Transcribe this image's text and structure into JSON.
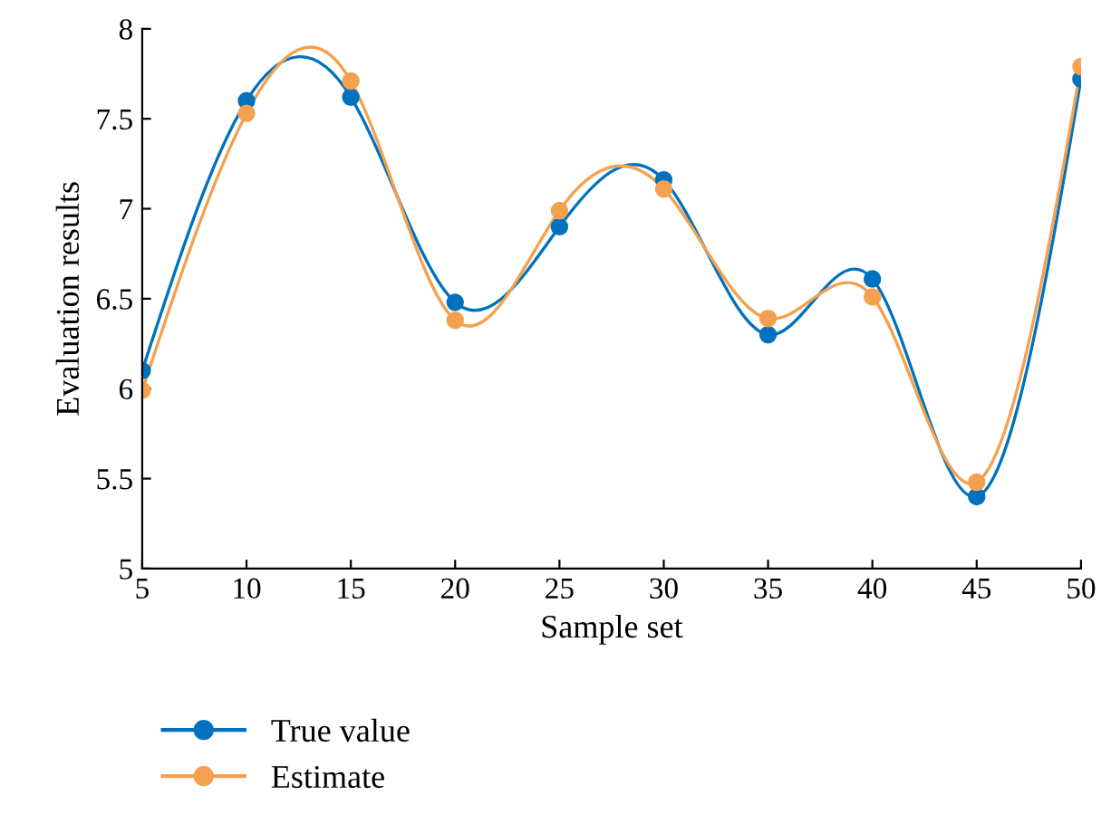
{
  "chart_data": {
    "type": "line",
    "xlabel": "Sample set",
    "ylabel": "Evaluation results",
    "x": [
      5,
      10,
      15,
      20,
      25,
      30,
      35,
      40,
      45,
      50
    ],
    "series": [
      {
        "name": "True value",
        "color": "#0072bd",
        "values": [
          6.1,
          7.6,
          7.62,
          6.48,
          6.9,
          7.16,
          6.3,
          6.61,
          5.4,
          7.72
        ]
      },
      {
        "name": "Estimate",
        "color": "#f5a04f",
        "values": [
          5.99,
          7.53,
          7.71,
          6.38,
          6.99,
          7.11,
          6.39,
          6.51,
          5.48,
          7.79
        ]
      }
    ],
    "xlim": [
      5,
      50
    ],
    "xticks": [
      5,
      10,
      15,
      20,
      25,
      30,
      35,
      40,
      45,
      50
    ],
    "ylim": [
      5,
      8
    ],
    "yticks": [
      5,
      5.5,
      6,
      6.5,
      7,
      7.5,
      8
    ],
    "grid": false,
    "legend": "bottom",
    "marker": "circle",
    "line_style": "solid"
  }
}
